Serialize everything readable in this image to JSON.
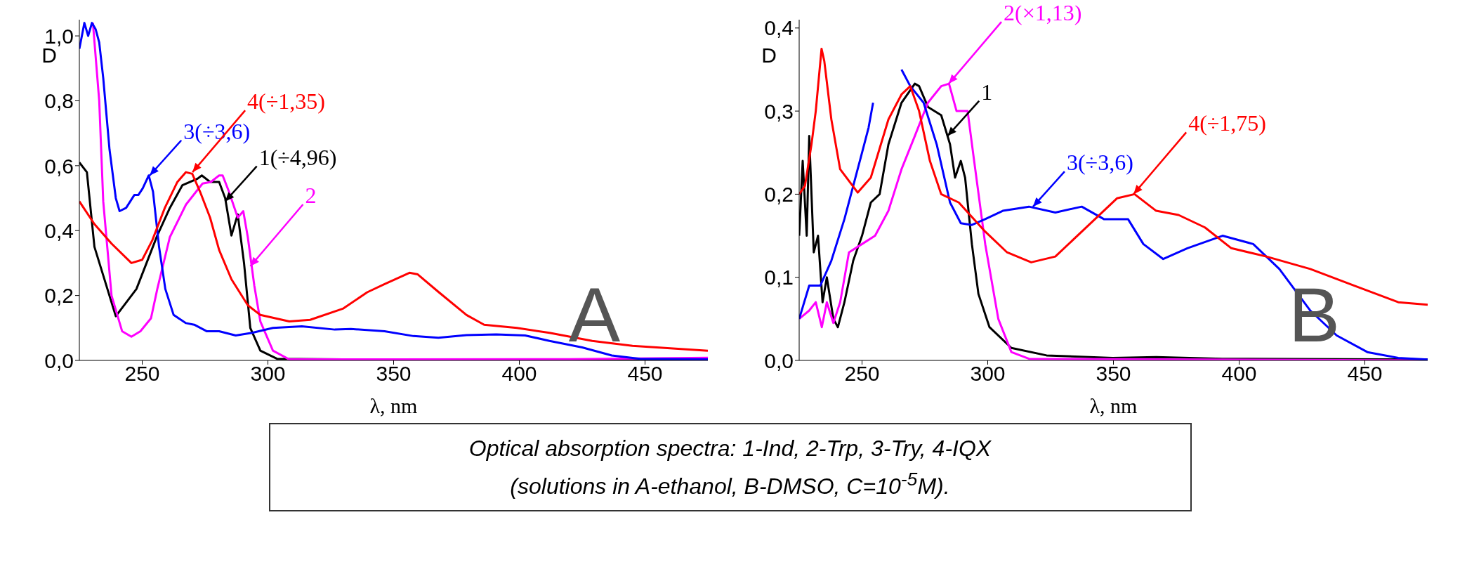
{
  "chart_data": [
    {
      "type": "line",
      "xlabel": "λ, nm",
      "ylabel": "D",
      "xlim": [
        225,
        475
      ],
      "xticks": [
        250,
        300,
        350,
        400,
        450
      ],
      "ylim": [
        0,
        1.05
      ],
      "yticks": [
        {
          "value": 0,
          "label": "0,0"
        },
        {
          "value": 0.2,
          "label": "0,2"
        },
        {
          "value": 0.4,
          "label": "0,4"
        },
        {
          "value": 0.6,
          "label": "0,6"
        },
        {
          "value": 0.8,
          "label": "0,8"
        },
        {
          "value": 1.0,
          "label": "1,0"
        }
      ],
      "series": [
        {
          "color": "#000000",
          "x": [
            225,
            228,
            231,
            239.5,
            247.7,
            256,
            261,
            266,
            272,
            273.7,
            277,
            280.6,
            283,
            285.5,
            288,
            290.5,
            293,
            297,
            303.6,
            330,
            400,
            475
          ],
          "values": [
            0.61,
            0.58,
            0.35,
            0.136,
            0.22,
            0.385,
            0.47,
            0.54,
            0.56,
            0.57,
            0.55,
            0.55,
            0.5,
            0.385,
            0.45,
            0.3,
            0.1,
            0.03,
            0.005,
            0.003,
            0.002,
            0.002
          ]
        },
        {
          "color": "#ff00ff",
          "x": [
            230.4,
            232.9,
            234.5,
            237.8,
            242,
            245.7,
            249.3,
            253.5,
            256,
            261,
            267.4,
            274,
            277.3,
            280.6,
            282,
            284.5,
            288,
            290.2,
            292,
            294.6,
            297,
            302,
            308.5,
            350,
            420,
            475
          ],
          "values": [
            1.04,
            0.8,
            0.49,
            0.2,
            0.09,
            0.073,
            0.09,
            0.13,
            0.22,
            0.38,
            0.48,
            0.545,
            0.55,
            0.57,
            0.57,
            0.52,
            0.44,
            0.46,
            0.38,
            0.23,
            0.12,
            0.03,
            0.003,
            0.003,
            0.004,
            0.008
          ]
        },
        {
          "color": "#0000ff",
          "x": [
            225,
            227,
            228.5,
            230,
            231.5,
            232.9,
            234.5,
            237,
            239.5,
            241,
            243.6,
            246.9,
            248.5,
            250.2,
            252.6,
            254.3,
            256.7,
            259.2,
            262.5,
            267.4,
            270.7,
            275.6,
            280.6,
            287.2,
            293.7,
            302,
            313.5,
            326.6,
            333,
            346.4,
            357.9,
            367.8,
            379,
            390.8,
            402.3,
            412,
            425,
            436.8,
            448,
            475
          ],
          "values": [
            0.96,
            1.04,
            1.0,
            1.04,
            1.02,
            0.98,
            0.87,
            0.65,
            0.5,
            0.46,
            0.47,
            0.51,
            0.51,
            0.53,
            0.57,
            0.52,
            0.35,
            0.22,
            0.14,
            0.115,
            0.11,
            0.09,
            0.09,
            0.077,
            0.085,
            0.1,
            0.105,
            0.095,
            0.097,
            0.09,
            0.075,
            0.07,
            0.078,
            0.08,
            0.077,
            0.06,
            0.04,
            0.015,
            0.005,
            0.003
          ]
        },
        {
          "color": "#ff0000",
          "x": [
            225,
            231,
            237.8,
            245.7,
            250,
            254,
            259,
            264,
            267.4,
            269.9,
            273,
            277,
            280.6,
            285.5,
            292,
            297,
            308.5,
            316.8,
            330,
            339.5,
            346.4,
            356.3,
            359.6,
            368,
            379,
            386,
            399,
            412,
            429,
            445,
            475
          ],
          "values": [
            0.49,
            0.42,
            0.36,
            0.3,
            0.31,
            0.37,
            0.47,
            0.55,
            0.58,
            0.575,
            0.52,
            0.44,
            0.34,
            0.25,
            0.17,
            0.14,
            0.12,
            0.125,
            0.16,
            0.21,
            0.235,
            0.27,
            0.265,
            0.21,
            0.14,
            0.11,
            0.1,
            0.085,
            0.06,
            0.045,
            0.03
          ]
        }
      ],
      "annotations": [
        {
          "text": "1(÷4,96)",
          "x": 283,
          "y": 0.49
        },
        {
          "text": "2",
          "x": 293,
          "y": 0.29
        },
        {
          "text": "3(÷3,6)",
          "x": 253,
          "y": 0.57
        },
        {
          "text": "4(÷1,35)",
          "x": 270,
          "y": 0.58
        },
        "A"
      ]
    },
    {
      "type": "line",
      "xlabel": "λ, nm",
      "ylabel": "D",
      "xlim": [
        225,
        475
      ],
      "xticks": [
        250,
        300,
        350,
        400,
        450
      ],
      "ylim": [
        0,
        0.41
      ],
      "yticks": [
        {
          "value": 0,
          "label": "0,0"
        },
        {
          "value": 0.1,
          "label": "0,1"
        },
        {
          "value": 0.2,
          "label": "0,2"
        },
        {
          "value": 0.3,
          "label": "0,3"
        },
        {
          "value": 0.4,
          "label": "0,4"
        }
      ],
      "series": [
        {
          "color": "#000000",
          "x": [
            225,
            226.4,
            228,
            229,
            230.8,
            232.5,
            234.3,
            236,
            238.6,
            240.4,
            243,
            246.5,
            250,
            253.5,
            257,
            260.5,
            265.7,
            271,
            272.7,
            276.2,
            281.5,
            285,
            287,
            289.3,
            291,
            293.7,
            296.3,
            300.7,
            309.4,
            323.4,
            349.7,
            367,
            393.4,
            475
          ],
          "values": [
            0.15,
            0.24,
            0.15,
            0.27,
            0.13,
            0.15,
            0.07,
            0.1,
            0.05,
            0.04,
            0.07,
            0.12,
            0.15,
            0.19,
            0.2,
            0.26,
            0.31,
            0.333,
            0.33,
            0.305,
            0.295,
            0.26,
            0.22,
            0.24,
            0.22,
            0.14,
            0.08,
            0.04,
            0.015,
            0.006,
            0.003,
            0.004,
            0.002,
            0.001
          ]
        },
        {
          "color": "#ff00ff",
          "x": [
            225,
            229,
            231.6,
            234,
            236,
            238.6,
            241.3,
            244.8,
            250,
            255.2,
            260.5,
            265.7,
            271,
            276.2,
            281.5,
            284.6,
            287.6,
            292,
            294.6,
            299,
            304.2,
            309.4,
            316.4,
            475
          ],
          "values": [
            0.05,
            0.06,
            0.07,
            0.04,
            0.07,
            0.045,
            0.07,
            0.13,
            0.14,
            0.15,
            0.18,
            0.23,
            0.27,
            0.31,
            0.33,
            0.333,
            0.3,
            0.3,
            0.24,
            0.14,
            0.05,
            0.01,
            0.002,
            0
          ]
        },
        {
          "color": "#0000ff",
          "x": [
            225,
            229,
            233.4,
            237.8,
            243,
            246.5,
            250,
            252.6,
            254.4,
            255.6,
            263.1,
            265.7,
            269.2,
            274.5,
            279.7,
            285,
            289.3,
            293.7,
            299,
            306,
            316.4,
            326.9,
            337.4,
            346.2,
            355.8,
            361.9,
            369.8,
            379.4,
            393.4,
            405.6,
            416,
            428.3,
            438.8,
            451,
            463.3,
            475
          ],
          "values": [
            0.05,
            0.09,
            0.09,
            0.12,
            0.17,
            0.21,
            0.25,
            0.28,
            0.31,
            null,
            null,
            0.35,
            0.33,
            0.31,
            0.26,
            0.19,
            0.165,
            0.163,
            0.17,
            0.18,
            0.185,
            0.178,
            0.185,
            0.17,
            0.17,
            0.14,
            0.122,
            0.135,
            0.15,
            0.14,
            0.11,
            0.06,
            0.03,
            0.01,
            0.003,
            0.001
          ]
        },
        {
          "color": "#ff0000",
          "x": [
            225,
            227.3,
            229.9,
            231.6,
            233.9,
            235,
            237.8,
            241.3,
            248.3,
            253.5,
            260.5,
            265.7,
            269.2,
            272.7,
            277,
            281.5,
            288.5,
            299,
            307.7,
            317.3,
            326.9,
            340.9,
            351.4,
            358.4,
            367,
            375.9,
            386.4,
            396.9,
            410.8,
            428.3,
            445.8,
            463.3,
            475
          ],
          "values": [
            0.2,
            0.21,
            0.26,
            0.3,
            0.375,
            0.36,
            0.29,
            0.23,
            0.202,
            0.22,
            0.29,
            0.32,
            0.33,
            0.3,
            0.24,
            0.2,
            0.19,
            0.155,
            0.13,
            0.118,
            0.125,
            0.165,
            0.195,
            0.2,
            0.18,
            0.175,
            0.16,
            0.135,
            0.125,
            0.11,
            0.09,
            0.07,
            0.067
          ]
        }
      ],
      "annotations": [
        {
          "text": "1",
          "x": 284,
          "y": 0.27
        },
        {
          "text": "2(×1,13)",
          "x": 284.5,
          "y": 0.333
        },
        {
          "text": "3(÷3,6)",
          "x": 318,
          "y": 0.185
        },
        {
          "text": "4(÷1,75)",
          "x": 358,
          "y": 0.2
        },
        "B"
      ]
    },
    {
      "type": "other",
      "annotations": [
        "Optical absorption spectra: 1-Ind, 2-Trp, 3-Try, 4-IQX",
        "(solutions in A-ethanol, B-DMSO, C=10$^{-5}$M)."
      ]
    }
  ]
}
